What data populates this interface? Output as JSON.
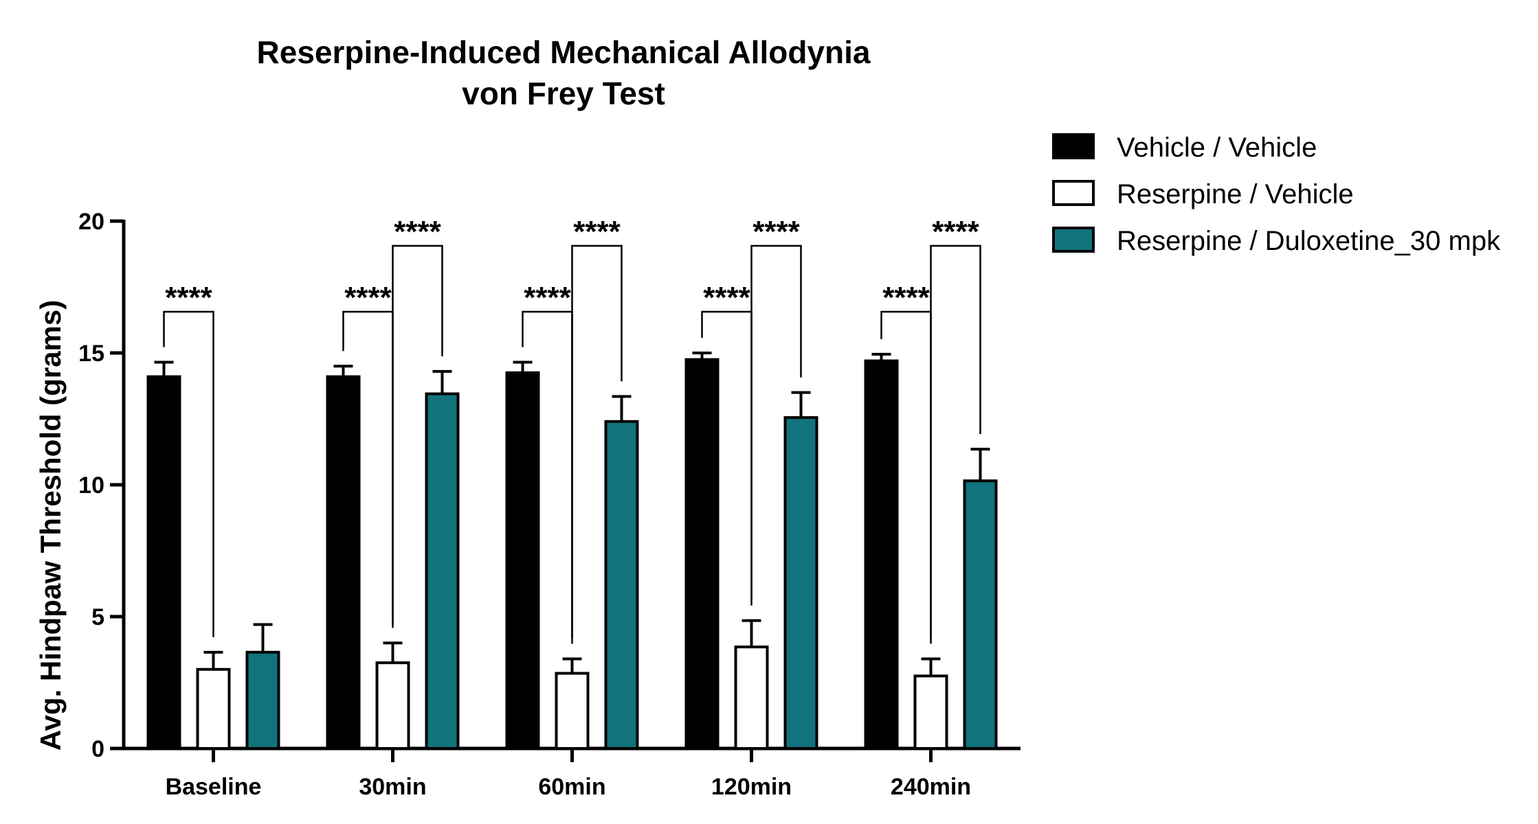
{
  "chart_data": {
    "type": "bar",
    "title": "Reserpine-Induced Mechanical Allodynia",
    "subtitle": "von Frey Test",
    "xlabel": "",
    "ylabel": "Avg. Hindpaw Threshold (grams)",
    "ylim": [
      0,
      20
    ],
    "yticks": [
      "0",
      "5",
      "10",
      "15",
      "20"
    ],
    "categories": [
      "Baseline",
      "30min",
      "60min",
      "120min",
      "240min"
    ],
    "series": [
      {
        "name": "Vehicle / Vehicle",
        "color": "#000000",
        "values": [
          14.1,
          14.1,
          14.25,
          14.75,
          14.7
        ],
        "errors": [
          0.55,
          0.4,
          0.4,
          0.25,
          0.25
        ]
      },
      {
        "name": "Reserpine / Vehicle",
        "color": "#ffffff",
        "values": [
          3.0,
          3.25,
          2.85,
          3.85,
          2.75
        ],
        "errors": [
          0.65,
          0.75,
          0.55,
          1.0,
          0.65
        ]
      },
      {
        "name": "Reserpine / Duloxetine_30 mpk",
        "color": "#11737c",
        "values": [
          3.65,
          13.45,
          12.4,
          12.55,
          10.15
        ],
        "errors": [
          1.05,
          0.85,
          0.95,
          0.95,
          1.2
        ]
      }
    ],
    "significance": [
      {
        "category": 0,
        "from": 0,
        "to": 1,
        "label": "****"
      },
      {
        "category": 1,
        "from": 0,
        "to": 1,
        "label": "****"
      },
      {
        "category": 1,
        "from": 1,
        "to": 2,
        "label": "****"
      },
      {
        "category": 2,
        "from": 0,
        "to": 1,
        "label": "****"
      },
      {
        "category": 2,
        "from": 1,
        "to": 2,
        "label": "****"
      },
      {
        "category": 3,
        "from": 0,
        "to": 1,
        "label": "****"
      },
      {
        "category": 3,
        "from": 1,
        "to": 2,
        "label": "****"
      },
      {
        "category": 4,
        "from": 0,
        "to": 1,
        "label": "****"
      },
      {
        "category": 4,
        "from": 1,
        "to": 2,
        "label": "****"
      }
    ],
    "legend_position": "top-right",
    "grid": false
  }
}
